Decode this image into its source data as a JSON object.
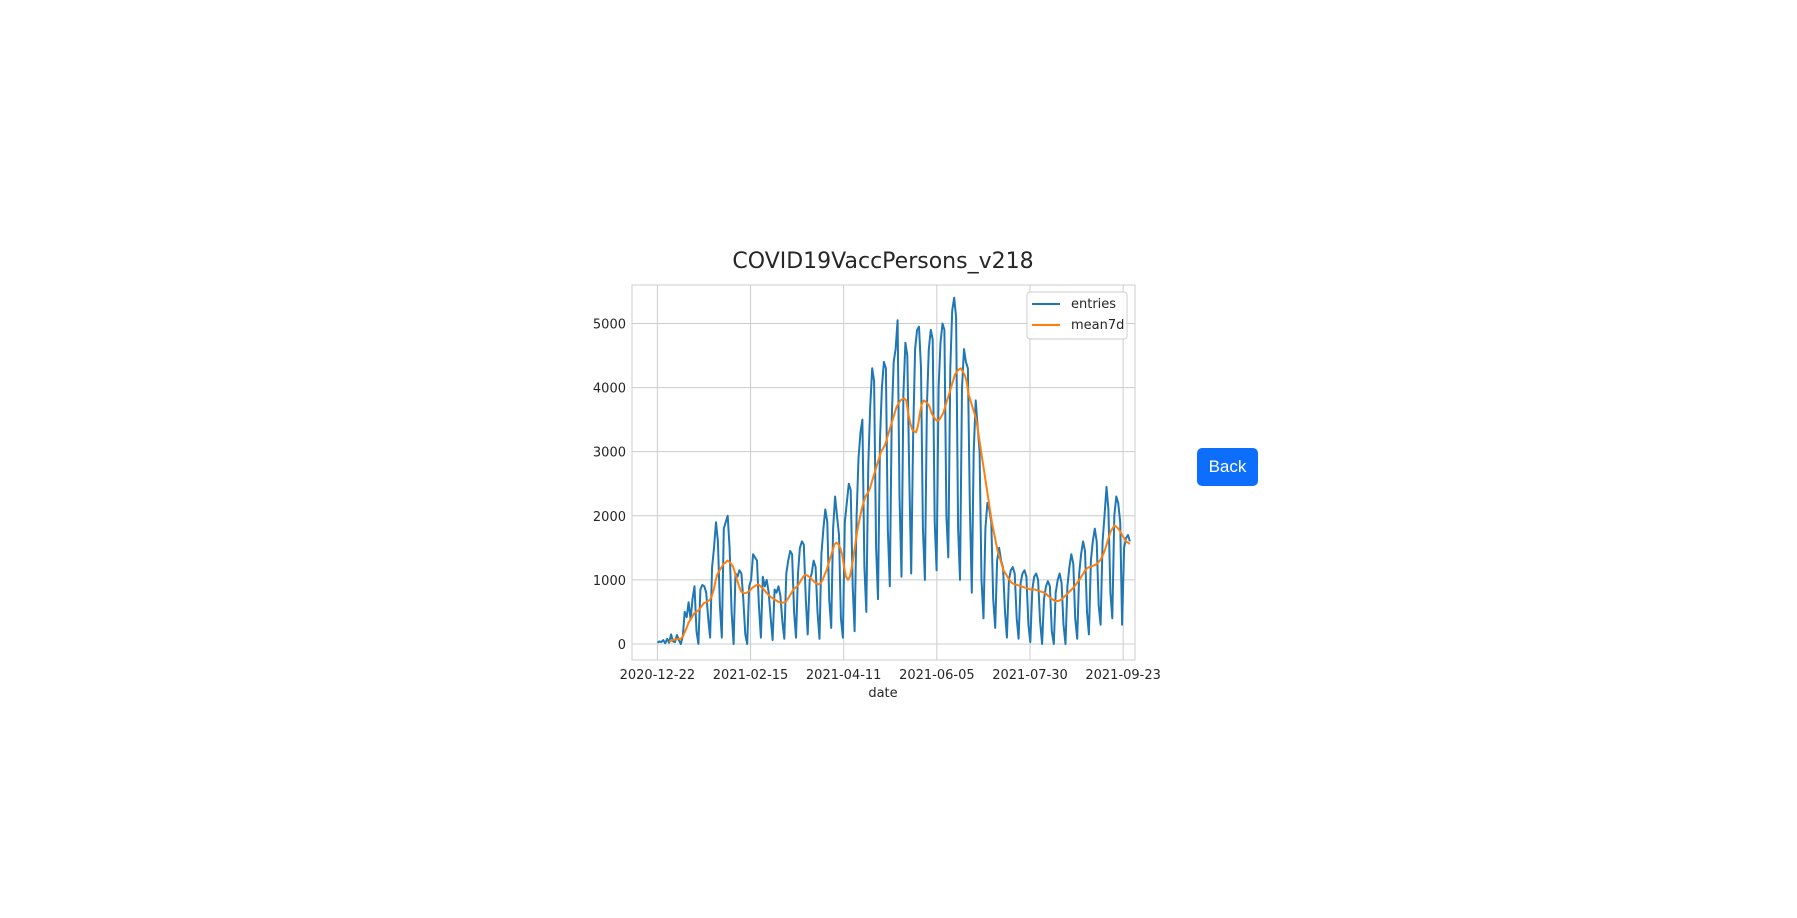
{
  "back_button": {
    "label": "Back"
  },
  "colors": {
    "entries": "#1f77b4",
    "mean7d": "#ff7f0e",
    "button": "#0d6efd",
    "grid": "#cccccc"
  },
  "chart_data": {
    "type": "line",
    "title": "COVID19VaccPersons_v218",
    "xlabel": "date",
    "ylabel": "",
    "grid": true,
    "legend": "top-right",
    "x_start": "2020-12-22",
    "x_end": "2021-09-27",
    "xlim": [
      "2020-12-07",
      "2021-09-30"
    ],
    "ylim": [
      -250,
      5600
    ],
    "x_ticks": [
      "2020-12-22",
      "2021-02-15",
      "2021-04-11",
      "2021-06-05",
      "2021-07-30",
      "2021-09-23"
    ],
    "y_ticks": [
      0,
      1000,
      2000,
      3000,
      4000,
      5000
    ],
    "series": [
      {
        "name": "entries",
        "values": [
          20,
          40,
          30,
          60,
          10,
          80,
          20,
          150,
          40,
          30,
          140,
          60,
          0,
          120,
          500,
          420,
          650,
          380,
          700,
          900,
          200,
          0,
          850,
          920,
          900,
          800,
          400,
          100,
          1200,
          1500,
          1900,
          1600,
          600,
          100,
          1800,
          1900,
          2000,
          1500,
          500,
          0,
          1100,
          1050,
          1150,
          1100,
          700,
          150,
          0,
          900,
          1000,
          1400,
          1350,
          1300,
          600,
          100,
          1050,
          900,
          1000,
          800,
          400,
          60,
          850,
          800,
          900,
          750,
          350,
          80,
          1100,
          1300,
          1450,
          1400,
          500,
          100,
          1100,
          1500,
          1600,
          1550,
          700,
          150,
          1000,
          1100,
          1300,
          1200,
          500,
          80,
          1400,
          1800,
          2100,
          1900,
          700,
          250,
          1800,
          2300,
          2000,
          1700,
          400,
          100,
          1900,
          2200,
          2500,
          2400,
          900,
          200,
          2000,
          2900,
          3300,
          3500,
          1200,
          500,
          2800,
          3700,
          4300,
          4100,
          1500,
          700,
          3200,
          4000,
          4400,
          4300,
          1800,
          900,
          3500,
          4400,
          4600,
          5050,
          2300,
          1050,
          3900,
          4700,
          4500,
          2600,
          1100,
          3300,
          4600,
          4900,
          4950,
          4300,
          1800,
          1000,
          3700,
          4600,
          4900,
          4750,
          1900,
          1150,
          4000,
          4700,
          5000,
          4900,
          2000,
          1350,
          4300,
          5200,
          5400,
          5100,
          1800,
          1000,
          4000,
          4600,
          4400,
          4300,
          2200,
          800,
          3000,
          3800,
          3400,
          3000,
          1000,
          400,
          1800,
          2200,
          2100,
          1900,
          700,
          250,
          1300,
          1500,
          1300,
          1200,
          500,
          100,
          1000,
          1150,
          1200,
          1100,
          400,
          80,
          950,
          1100,
          1150,
          1050,
          300,
          30,
          850,
          1050,
          1100,
          1000,
          350,
          0,
          700,
          900,
          980,
          900,
          200,
          0,
          800,
          1000,
          1100,
          950,
          300,
          0,
          900,
          1200,
          1400,
          1250,
          400,
          80,
          1100,
          1400,
          1600,
          1450,
          500,
          150,
          1300,
          1600,
          1800,
          1600,
          600,
          300,
          1600,
          2000,
          2450,
          2100,
          800,
          400,
          2000,
          2300,
          2200,
          1900,
          300,
          1500,
          1650,
          1700,
          1600
        ]
      },
      {
        "name": "mean7d",
        "values": [
          null,
          null,
          null,
          null,
          null,
          null,
          40,
          50,
          60,
          70,
          75,
          78,
          80,
          110,
          180,
          250,
          330,
          380,
          430,
          480,
          500,
          520,
          560,
          600,
          640,
          650,
          670,
          690,
          750,
          850,
          1000,
          1100,
          1150,
          1200,
          1250,
          1270,
          1300,
          1280,
          1250,
          1200,
          1100,
          1000,
          900,
          820,
          800,
          790,
          800,
          820,
          850,
          880,
          900,
          920,
          930,
          900,
          870,
          840,
          800,
          770,
          740,
          720,
          700,
          680,
          660,
          650,
          640,
          650,
          660,
          700,
          750,
          800,
          850,
          880,
          900,
          950,
          1000,
          1050,
          1080,
          1070,
          1050,
          1020,
          990,
          960,
          940,
          930,
          950,
          1000,
          1080,
          1150,
          1250,
          1350,
          1450,
          1550,
          1580,
          1560,
          1500,
          1400,
          1200,
          1050,
          1000,
          1050,
          1200,
          1400,
          1600,
          1800,
          1950,
          2100,
          2200,
          2300,
          2350,
          2400,
          2500,
          2600,
          2700,
          2800,
          2900,
          3000,
          3050,
          3100,
          3200,
          3300,
          3400,
          3500,
          3600,
          3700,
          3750,
          3800,
          3820,
          3830,
          3800,
          3600,
          3450,
          3350,
          3320,
          3300,
          3400,
          3600,
          3750,
          3800,
          3780,
          3750,
          3700,
          3600,
          3550,
          3500,
          3480,
          3500,
          3550,
          3600,
          3700,
          3800,
          3900,
          4000,
          4100,
          4200,
          4250,
          4280,
          4300,
          4250,
          4200,
          4100,
          3900,
          3800,
          3700,
          3600,
          3500,
          3300,
          3100,
          2900,
          2700,
          2500,
          2300,
          2100,
          1900,
          1750,
          1600,
          1450,
          1350,
          1250,
          1150,
          1100,
          1050,
          1000,
          960,
          940,
          930,
          920,
          910,
          900,
          890,
          880,
          870,
          860,
          850,
          850,
          850,
          840,
          830,
          820,
          810,
          800,
          780,
          750,
          720,
          700,
          680,
          670,
          670,
          680,
          700,
          730,
          760,
          790,
          820,
          850,
          880,
          920,
          960,
          1000,
          1050,
          1100,
          1150,
          1180,
          1200,
          1210,
          1220,
          1230,
          1250,
          1280,
          1320,
          1380,
          1450,
          1550,
          1650,
          1750,
          1800,
          1850,
          1830,
          1800,
          1750,
          1700,
          1650,
          1600,
          1580,
          1560
        ]
      }
    ]
  }
}
